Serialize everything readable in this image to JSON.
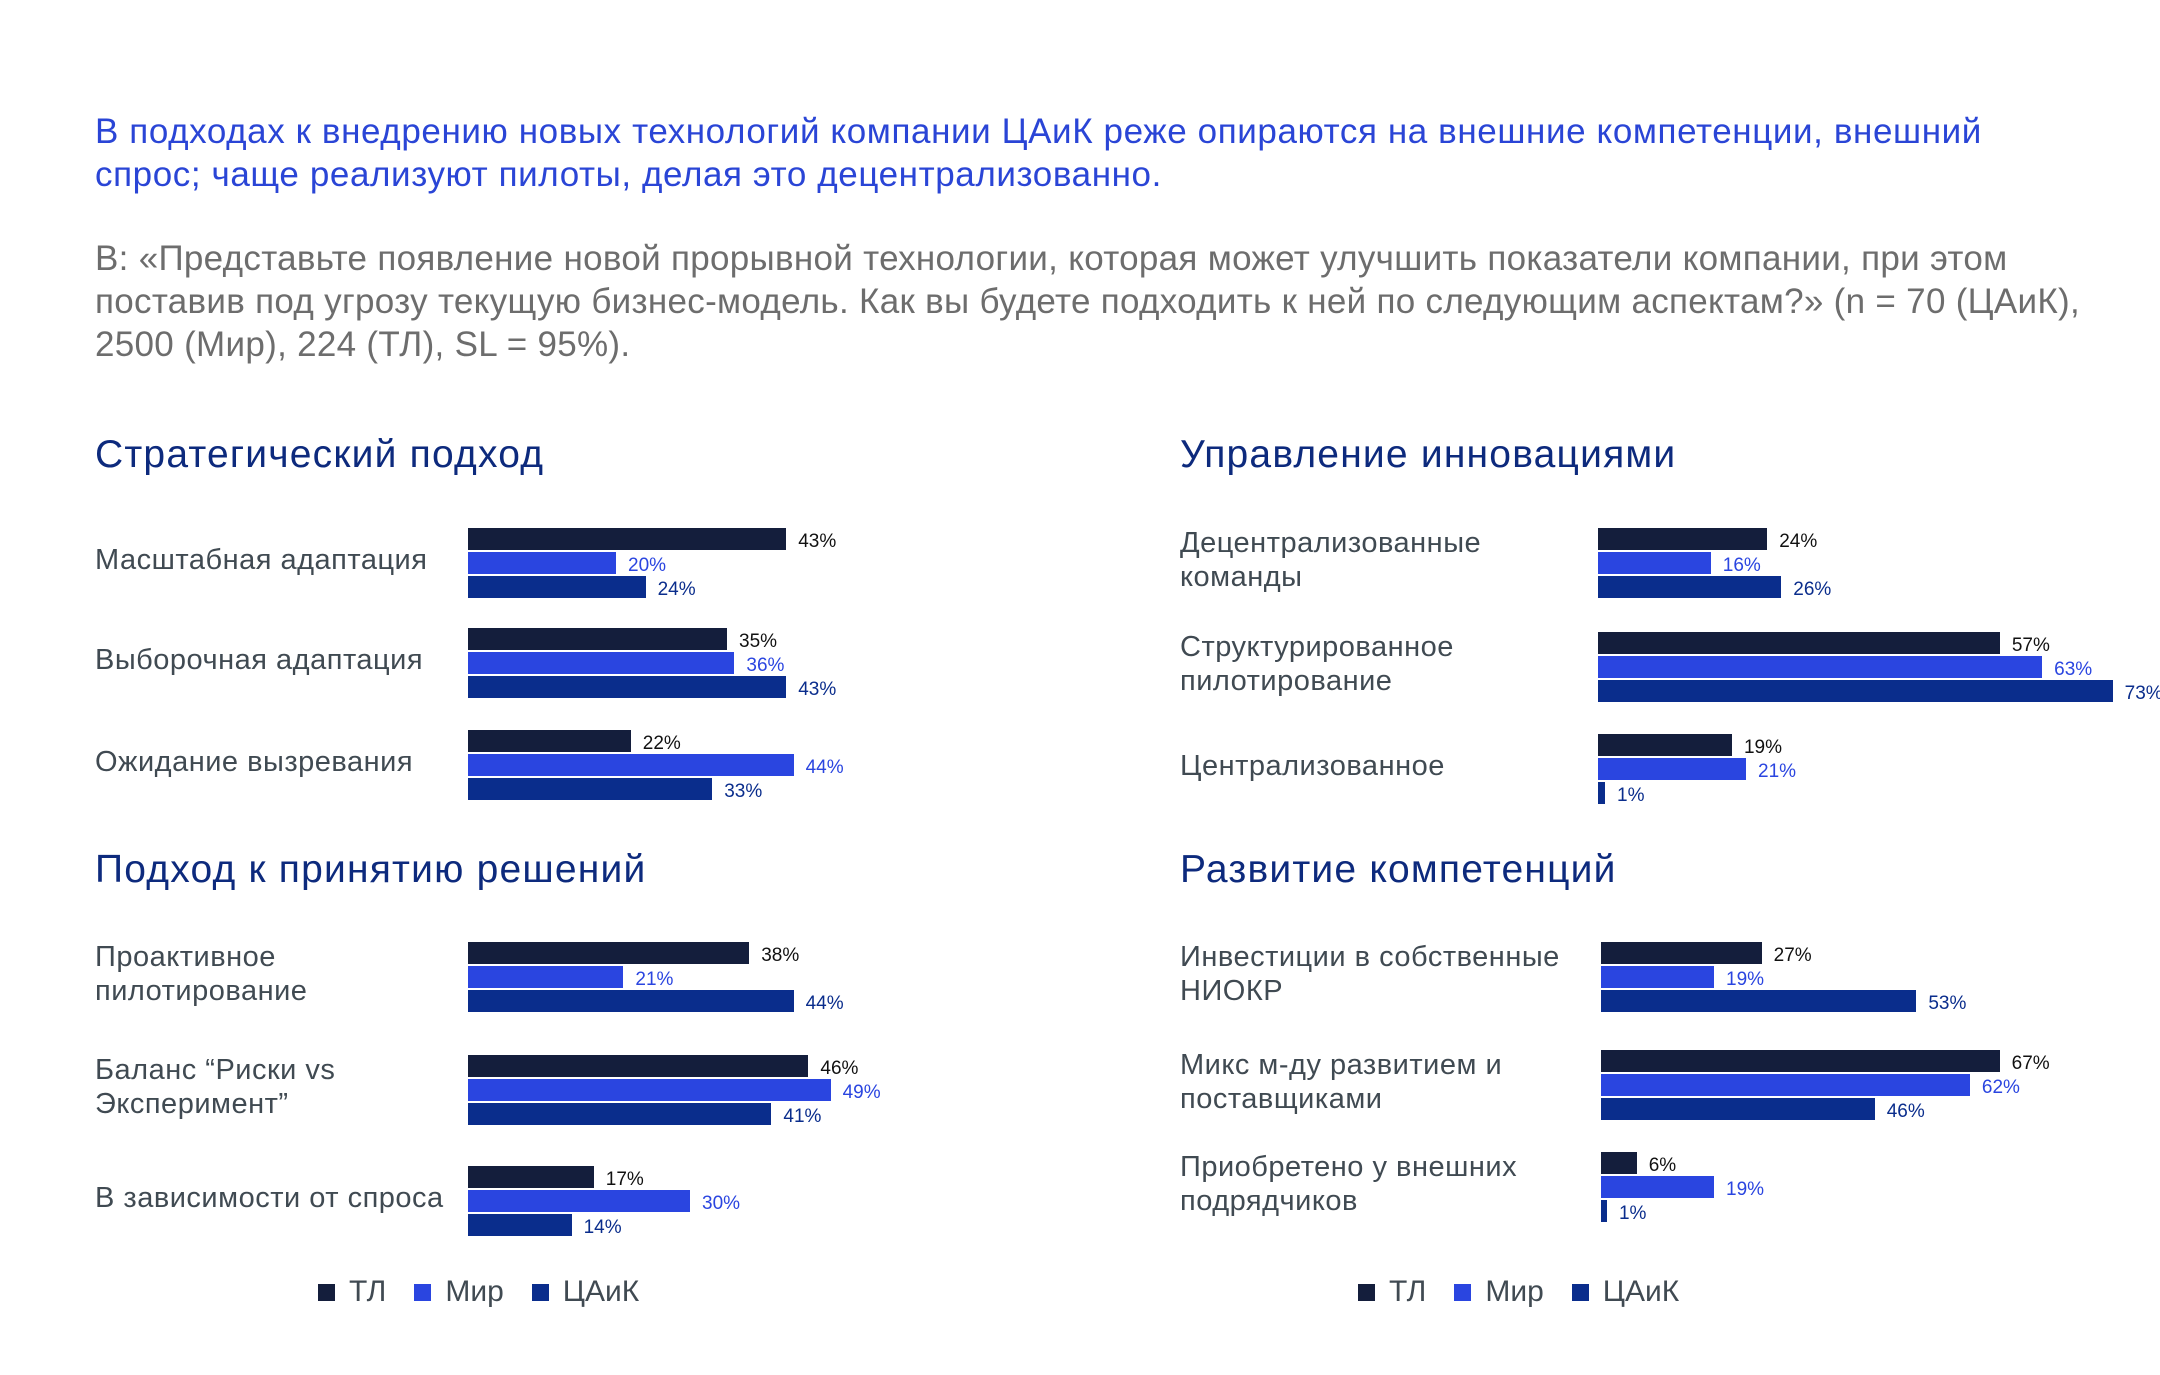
{
  "header": {
    "headline": "В подходах к внедрению новых технологий компании ЦАиК реже опираются на внешние компетенции, внешний спрос; чаще реализуют пилоты, делая это децентрализованно.",
    "question": "В: «Представьте появление новой прорывной технологии, которая может улучшить показатели компании, при этом поставив под угрозу текущую бизнес-модель. Как вы будете подходить к ней по следующим аспектам?» (n = 70 (ЦАиК), 2500 (Мир), 224 (ТЛ), SL = 95%)."
  },
  "legend": [
    {
      "name": "ТЛ",
      "color": "#141e3c"
    },
    {
      "name": "Мир",
      "color": "#2a45e0"
    },
    {
      "name": "ЦАиК",
      "color": "#0a2d8c"
    }
  ],
  "value_colors": {
    "ТЛ": "#111111",
    "Мир": "#2a45e0",
    "ЦАиК": "#0a2d8c"
  },
  "chart_data": [
    {
      "type": "bar",
      "title": "Стратегический подход",
      "categories": [
        "Масштабная адаптация",
        "Выборочная адаптация",
        "Ожидание вызревания"
      ],
      "series": [
        {
          "name": "ТЛ",
          "values": [
            43,
            35,
            22
          ]
        },
        {
          "name": "Мир",
          "values": [
            20,
            36,
            44
          ]
        },
        {
          "name": "ЦАиК",
          "values": [
            24,
            43,
            33
          ]
        }
      ],
      "unit": "%"
    },
    {
      "type": "bar",
      "title": "Управление инновациями",
      "categories": [
        "Децентрализованные команды",
        "Структурированное пилотирование",
        "Централизованное"
      ],
      "series": [
        {
          "name": "ТЛ",
          "values": [
            24,
            57,
            19
          ]
        },
        {
          "name": "Мир",
          "values": [
            16,
            63,
            21
          ]
        },
        {
          "name": "ЦАиК",
          "values": [
            26,
            73,
            1
          ]
        }
      ],
      "unit": "%"
    },
    {
      "type": "bar",
      "title": "Подход к принятию решений",
      "categories": [
        "Проактивное пилотирование",
        "Баланс “Риски vs Эксперимент”",
        "В зависимости от спроса"
      ],
      "series": [
        {
          "name": "ТЛ",
          "values": [
            38,
            46,
            17
          ]
        },
        {
          "name": "Мир",
          "values": [
            21,
            49,
            30
          ]
        },
        {
          "name": "ЦАиК",
          "values": [
            44,
            41,
            14
          ]
        }
      ],
      "unit": "%"
    },
    {
      "type": "bar",
      "title": "Развитие компетенций",
      "categories": [
        "Инвестиции в собственные НИОКР",
        "Микс м-ду развитием и поставщиками",
        "Приобретено у внешних подрядчиков"
      ],
      "series": [
        {
          "name": "ТЛ",
          "values": [
            27,
            67,
            6
          ]
        },
        {
          "name": "Мир",
          "values": [
            19,
            62,
            19
          ]
        },
        {
          "name": "ЦАиК",
          "values": [
            53,
            46,
            1
          ]
        }
      ],
      "unit": "%"
    }
  ]
}
